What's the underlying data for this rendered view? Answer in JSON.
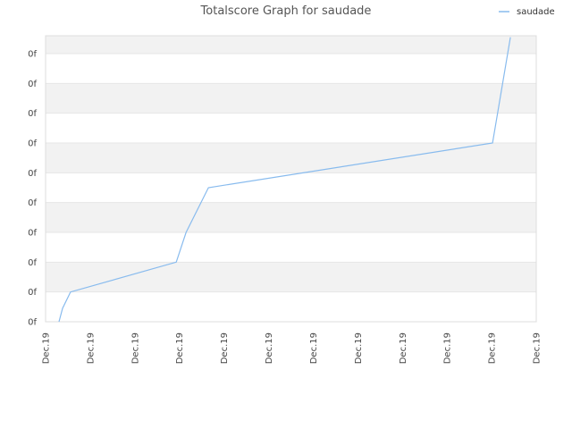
{
  "chart_data": {
    "type": "line",
    "title": "Totalscore Graph for saudade",
    "legend": {
      "position": "top-right",
      "entries": [
        "saudade"
      ]
    },
    "grid": true,
    "y_tick_labels": [
      "0f",
      "0f",
      "0f",
      "0f",
      "0f",
      "0f",
      "0f",
      "0f",
      "0f",
      "0f"
    ],
    "x_tick_labels": [
      "Dec.19",
      "Dec.19",
      "Dec.19",
      "Dec.19",
      "Dec.19",
      "Dec.19",
      "Dec.19",
      "Dec.19",
      "Dec.19",
      "Dec.19",
      "Dec.19",
      "Dec.19"
    ],
    "xlim": [
      0,
      11
    ],
    "ylim": [
      0,
      9.6
    ],
    "series": [
      {
        "name": "saudade",
        "color": "#88bbee",
        "x": [
          0.3,
          0.38,
          0.56,
          2.93,
          3.15,
          3.65,
          10.02,
          10.42
        ],
        "y": [
          0.0,
          0.45,
          1.0,
          2.0,
          3.0,
          4.5,
          6.0,
          9.55
        ]
      }
    ]
  }
}
